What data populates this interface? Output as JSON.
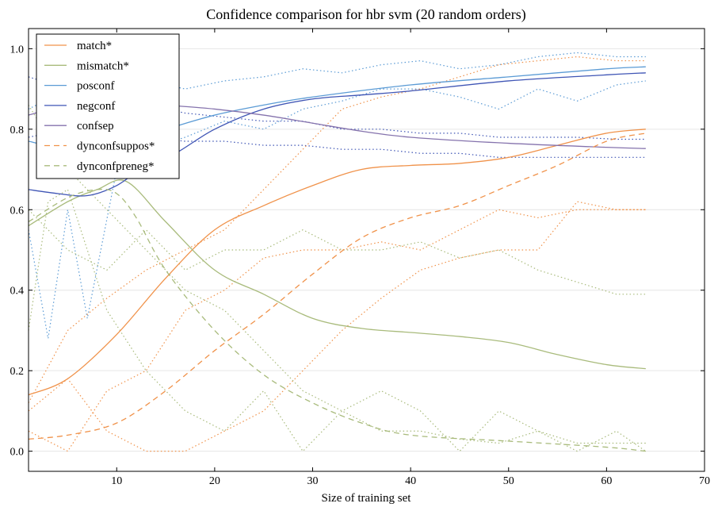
{
  "chart_data": {
    "type": "line",
    "title": "Confidence comparison for hbr svm (20 random orders)",
    "xlabel": "Size of training set",
    "ylabel": "",
    "xlim": [
      1,
      70
    ],
    "ylim": [
      -0.05,
      1.05
    ],
    "xticks": [
      "10",
      "20",
      "30",
      "40",
      "50",
      "60",
      "70"
    ],
    "yticks": [
      "0.0",
      "0.2",
      "0.4",
      "0.6",
      "0.8",
      "1.0"
    ],
    "grid": "horizontal",
    "legend_position": "top-left",
    "series": [
      {
        "name": "match*",
        "color": "#f0924a",
        "style": "solid",
        "x": [
          1,
          5,
          10,
          15,
          20,
          25,
          30,
          35,
          40,
          45,
          50,
          55,
          60,
          64
        ],
        "y": [
          0.14,
          0.18,
          0.29,
          0.43,
          0.55,
          0.61,
          0.66,
          0.7,
          0.71,
          0.715,
          0.73,
          0.76,
          0.79,
          0.8
        ]
      },
      {
        "name": "mismatch*",
        "color": "#a9bb7c",
        "style": "solid",
        "x": [
          1,
          5,
          8,
          11,
          15,
          20,
          25,
          30,
          35,
          40,
          45,
          50,
          55,
          60,
          64
        ],
        "y": [
          0.56,
          0.62,
          0.65,
          0.67,
          0.57,
          0.45,
          0.39,
          0.33,
          0.305,
          0.295,
          0.285,
          0.27,
          0.24,
          0.215,
          0.205
        ]
      },
      {
        "name": "posconf",
        "color": "#5b9bd5",
        "style": "solid",
        "x": [
          1,
          5,
          8,
          12,
          15,
          20,
          25,
          30,
          40,
          50,
          60,
          64
        ],
        "y": [
          0.77,
          0.75,
          0.76,
          0.78,
          0.8,
          0.835,
          0.86,
          0.88,
          0.91,
          0.93,
          0.95,
          0.955
        ]
      },
      {
        "name": "negconf",
        "color": "#3f55b5",
        "style": "solid",
        "x": [
          1,
          4,
          7,
          10,
          13,
          16,
          20,
          25,
          30,
          35,
          40,
          50,
          60,
          64
        ],
        "y": [
          0.65,
          0.64,
          0.635,
          0.66,
          0.71,
          0.74,
          0.8,
          0.85,
          0.875,
          0.885,
          0.895,
          0.92,
          0.935,
          0.94
        ]
      },
      {
        "name": "confsep",
        "color": "#8573ad",
        "style": "solid",
        "x": [
          1,
          5,
          10,
          15,
          20,
          25,
          30,
          35,
          40,
          50,
          60,
          64
        ],
        "y": [
          0.835,
          0.86,
          0.87,
          0.86,
          0.85,
          0.835,
          0.815,
          0.795,
          0.78,
          0.765,
          0.755,
          0.752
        ]
      },
      {
        "name": "dynconfsuppos*",
        "color": "#f0924a",
        "style": "dashed",
        "x": [
          1,
          5,
          10,
          15,
          20,
          25,
          30,
          35,
          40,
          45,
          50,
          55,
          60,
          64
        ],
        "y": [
          0.03,
          0.04,
          0.07,
          0.15,
          0.25,
          0.34,
          0.44,
          0.53,
          0.58,
          0.61,
          0.66,
          0.71,
          0.77,
          0.79
        ]
      },
      {
        "name": "dynconfpreneg*",
        "color": "#a9bb7c",
        "style": "dashed",
        "x": [
          1,
          5,
          8,
          10,
          12,
          15,
          20,
          25,
          30,
          35,
          40,
          50,
          60,
          64
        ],
        "y": [
          0.57,
          0.63,
          0.65,
          0.64,
          0.58,
          0.45,
          0.3,
          0.19,
          0.12,
          0.07,
          0.04,
          0.025,
          0.01,
          0.0
        ]
      }
    ],
    "dotted_series": [
      {
        "color": "#5b9bd5",
        "x": [
          1,
          5,
          9,
          13,
          17,
          21,
          25,
          29,
          33,
          37,
          41,
          45,
          49,
          53,
          57,
          61,
          64
        ],
        "y": [
          0.85,
          0.9,
          0.88,
          0.92,
          0.9,
          0.92,
          0.93,
          0.95,
          0.94,
          0.96,
          0.97,
          0.95,
          0.96,
          0.98,
          0.99,
          0.98,
          0.98
        ]
      },
      {
        "color": "#5b9bd5",
        "x": [
          1,
          3,
          5,
          7,
          10,
          13,
          17,
          21,
          25,
          29,
          33,
          37,
          41,
          45,
          49,
          53,
          57,
          61,
          64
        ],
        "y": [
          0.55,
          0.28,
          0.6,
          0.33,
          0.7,
          0.75,
          0.78,
          0.82,
          0.8,
          0.85,
          0.87,
          0.9,
          0.9,
          0.88,
          0.85,
          0.9,
          0.87,
          0.91,
          0.92
        ]
      },
      {
        "color": "#3f55b5",
        "x": [
          1,
          5,
          9,
          13,
          17,
          21,
          25,
          29,
          33,
          37,
          41,
          45,
          49,
          53,
          57,
          61,
          64
        ],
        "y": [
          0.78,
          0.8,
          0.79,
          0.78,
          0.77,
          0.77,
          0.76,
          0.76,
          0.75,
          0.75,
          0.74,
          0.74,
          0.73,
          0.73,
          0.73,
          0.73,
          0.73
        ]
      },
      {
        "color": "#3f55b5",
        "x": [
          1,
          5,
          9,
          13,
          17,
          21,
          25,
          29,
          33,
          37,
          41,
          45,
          49,
          53,
          57,
          61,
          64
        ],
        "y": [
          0.93,
          0.9,
          0.87,
          0.86,
          0.84,
          0.83,
          0.82,
          0.82,
          0.8,
          0.8,
          0.79,
          0.79,
          0.78,
          0.78,
          0.78,
          0.775,
          0.775
        ]
      },
      {
        "color": "#f0924a",
        "x": [
          1,
          5,
          9,
          13,
          17,
          21,
          25,
          29,
          33,
          37,
          41,
          45,
          49,
          53,
          57,
          61,
          64
        ],
        "y": [
          0.12,
          0.3,
          0.38,
          0.45,
          0.5,
          0.55,
          0.65,
          0.75,
          0.85,
          0.88,
          0.9,
          0.93,
          0.96,
          0.97,
          0.98,
          0.97,
          0.97
        ]
      },
      {
        "color": "#f0924a",
        "x": [
          1,
          5,
          9,
          13,
          17,
          21,
          25,
          29,
          33,
          37,
          41,
          45,
          49,
          53,
          57,
          61,
          64
        ],
        "y": [
          0.05,
          0.0,
          0.15,
          0.2,
          0.35,
          0.4,
          0.48,
          0.5,
          0.5,
          0.52,
          0.5,
          0.55,
          0.6,
          0.58,
          0.6,
          0.6,
          0.6
        ]
      },
      {
        "color": "#f0924a",
        "x": [
          1,
          5,
          9,
          13,
          17,
          21,
          25,
          29,
          33,
          37,
          41,
          45,
          49,
          53,
          57,
          61,
          64
        ],
        "y": [
          0.1,
          0.18,
          0.05,
          0.0,
          0.0,
          0.05,
          0.1,
          0.2,
          0.3,
          0.38,
          0.45,
          0.48,
          0.5,
          0.5,
          0.62,
          0.6,
          0.6
        ]
      },
      {
        "color": "#a9bb7c",
        "x": [
          1,
          5,
          9,
          13,
          17,
          21,
          25,
          29,
          33,
          37,
          41,
          45,
          49,
          53,
          57,
          61,
          64
        ],
        "y": [
          0.86,
          0.7,
          0.6,
          0.5,
          0.4,
          0.35,
          0.25,
          0.15,
          0.1,
          0.05,
          0.05,
          0.03,
          0.02,
          0.05,
          0.02,
          0.02,
          0.02
        ]
      },
      {
        "color": "#a9bb7c",
        "x": [
          1,
          5,
          9,
          13,
          17,
          21,
          25,
          29,
          33,
          37,
          41,
          45,
          49,
          53,
          57,
          61,
          64
        ],
        "y": [
          0.6,
          0.5,
          0.45,
          0.55,
          0.45,
          0.5,
          0.5,
          0.55,
          0.5,
          0.5,
          0.52,
          0.48,
          0.5,
          0.45,
          0.42,
          0.39,
          0.39
        ]
      },
      {
        "color": "#a9bb7c",
        "x": [
          1,
          3,
          5,
          9,
          13,
          17,
          21,
          25,
          29,
          33,
          37,
          41,
          45,
          49,
          53,
          57,
          61,
          64
        ],
        "y": [
          0.3,
          0.62,
          0.65,
          0.35,
          0.2,
          0.1,
          0.05,
          0.15,
          0.0,
          0.1,
          0.15,
          0.1,
          0.0,
          0.1,
          0.05,
          0.0,
          0.05,
          0.0
        ]
      }
    ]
  }
}
